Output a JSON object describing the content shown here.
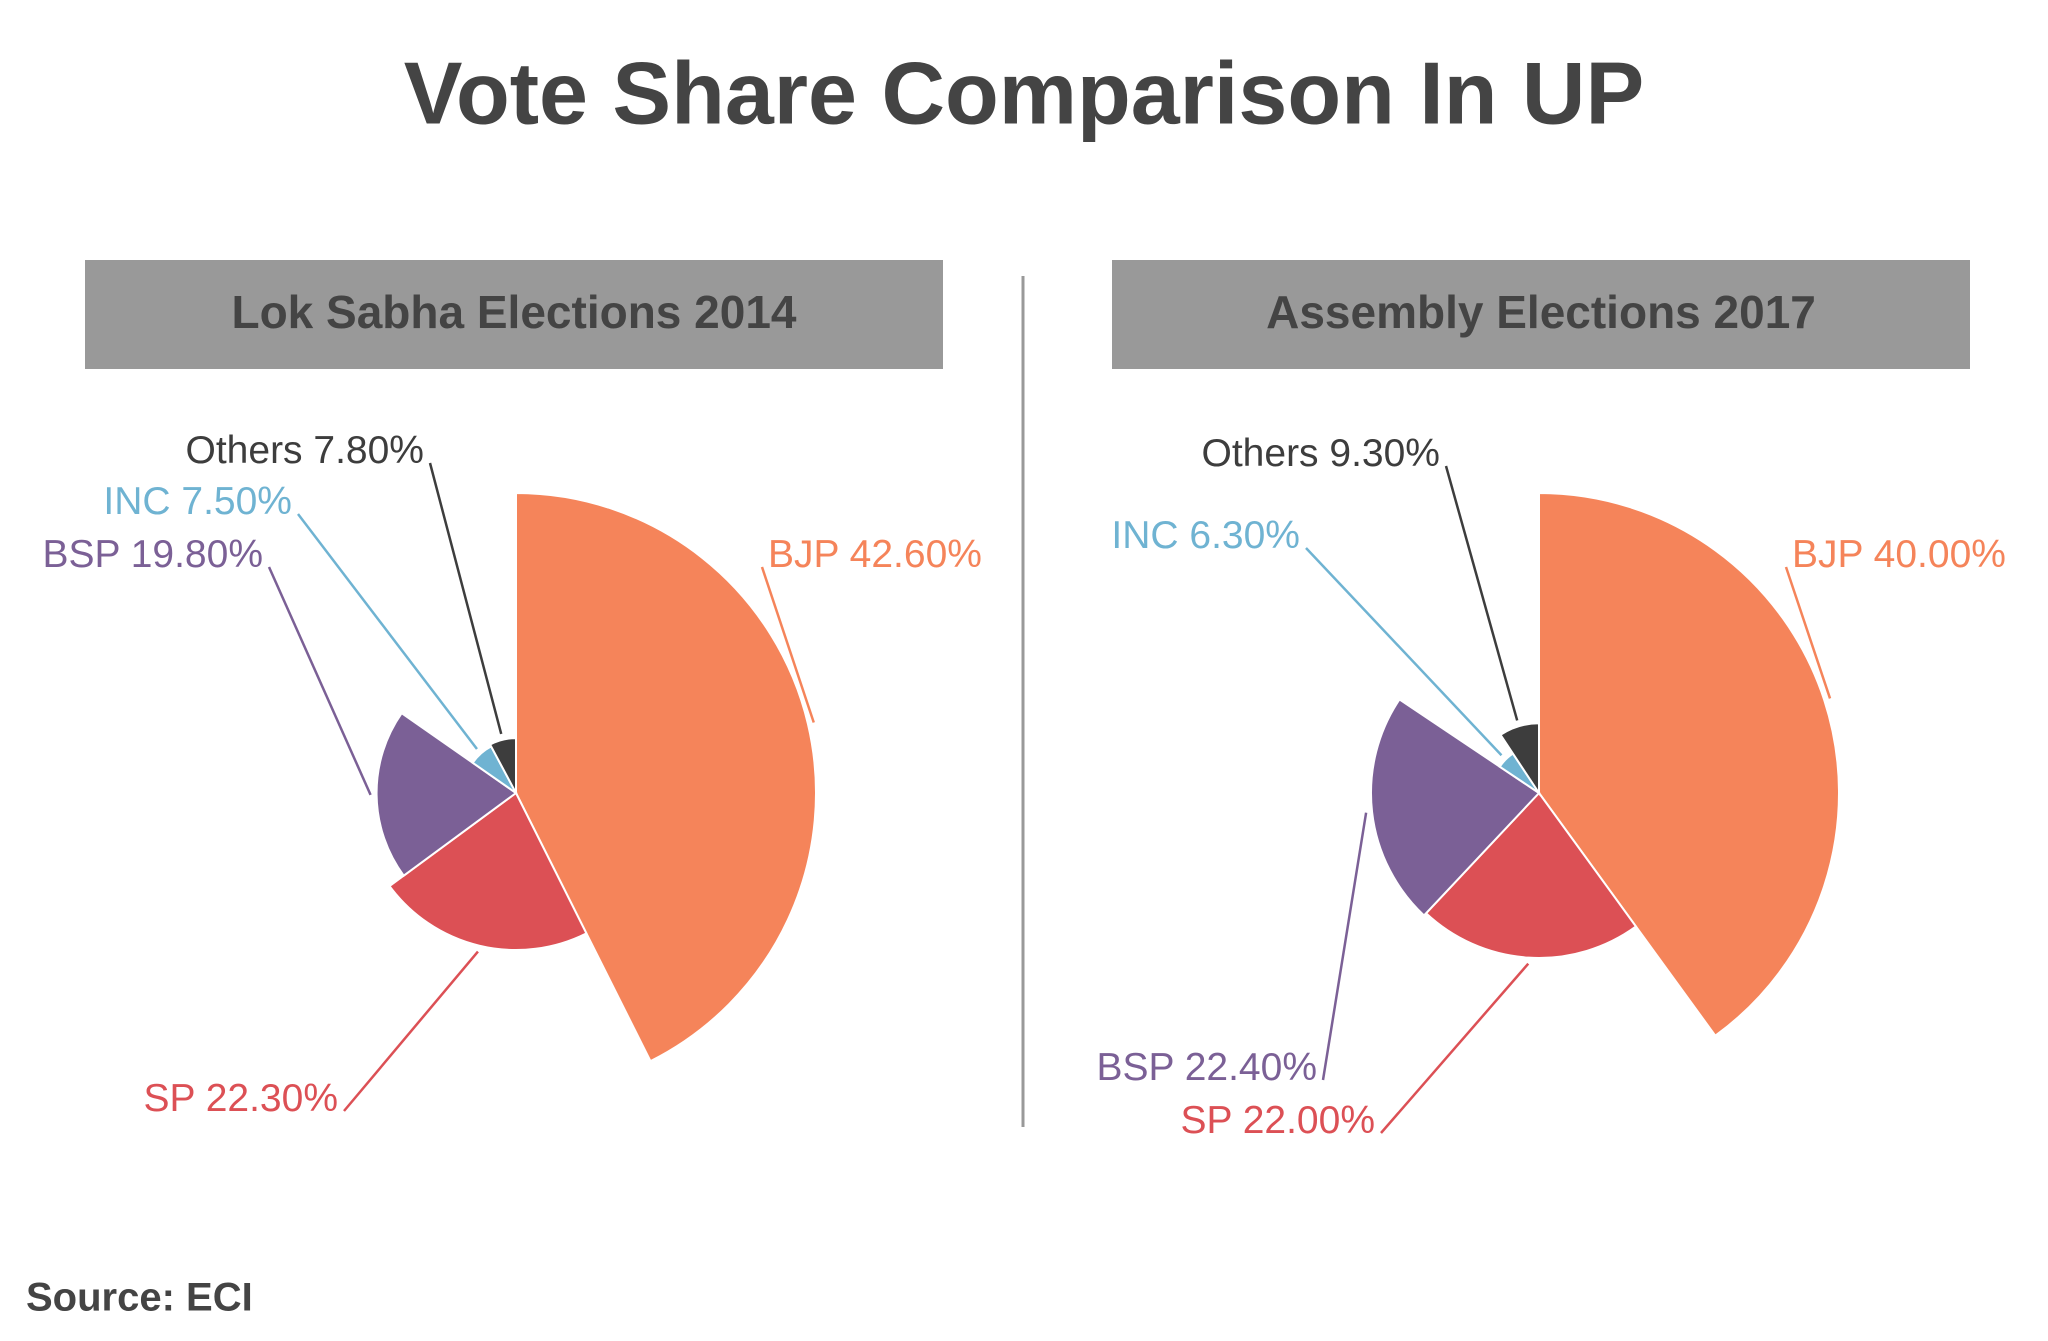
{
  "title": "Vote Share Comparison In UP",
  "source": "Source: ECI",
  "chart_data": [
    {
      "type": "pie",
      "title": "Lok Sabha Elections 2014",
      "categories": [
        "BJP",
        "SP",
        "BSP",
        "INC",
        "Others"
      ],
      "values": [
        42.6,
        22.3,
        19.8,
        7.5,
        7.8
      ],
      "value_labels": [
        "42.60%",
        "22.30%",
        "19.80%",
        "7.50%",
        "7.80%"
      ],
      "colors": [
        "#f5845a",
        "#dc5055",
        "#7b6096",
        "#6fb3d2",
        "#3d3d3d"
      ]
    },
    {
      "type": "pie",
      "title": "Assembly Elections 2017",
      "categories": [
        "BJP",
        "SP",
        "BSP",
        "INC",
        "Others"
      ],
      "values": [
        40.0,
        22.0,
        22.4,
        6.3,
        9.3
      ],
      "value_labels": [
        "40.00%",
        "22.00%",
        "22.40%",
        "6.30%",
        "9.30%"
      ],
      "colors": [
        "#f5845a",
        "#dc5055",
        "#7b6096",
        "#6fb3d2",
        "#3d3d3d"
      ]
    }
  ]
}
